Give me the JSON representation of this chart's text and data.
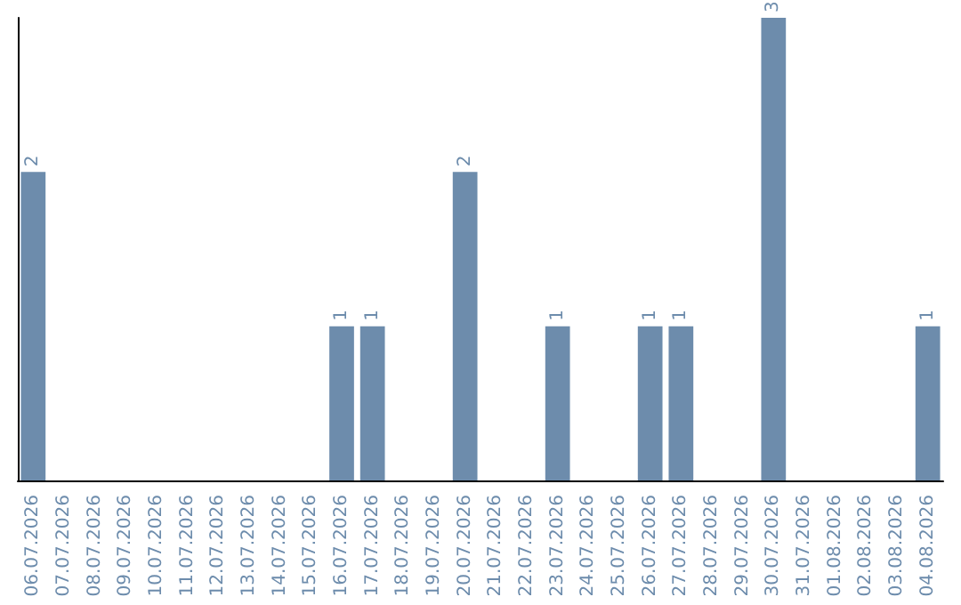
{
  "chart_data": {
    "type": "bar",
    "categories": [
      "06.07.2026",
      "07.07.2026",
      "08.07.2026",
      "09.07.2026",
      "10.07.2026",
      "11.07.2026",
      "12.07.2026",
      "13.07.2026",
      "14.07.2026",
      "15.07.2026",
      "16.07.2026",
      "17.07.2026",
      "18.07.2026",
      "19.07.2026",
      "20.07.2026",
      "21.07.2026",
      "22.07.2026",
      "23.07.2026",
      "24.07.2026",
      "25.07.2026",
      "26.07.2026",
      "27.07.2026",
      "28.07.2026",
      "29.07.2026",
      "30.07.2026",
      "31.07.2026",
      "01.08.2026",
      "02.08.2026",
      "03.08.2026",
      "04.08.2026"
    ],
    "values": [
      2,
      0,
      0,
      0,
      0,
      0,
      0,
      0,
      0,
      0,
      1,
      1,
      0,
      0,
      2,
      0,
      0,
      1,
      0,
      0,
      1,
      1,
      0,
      0,
      3,
      0,
      0,
      0,
      0,
      1
    ],
    "value_labels": [
      "2",
      null,
      null,
      null,
      null,
      null,
      null,
      null,
      null,
      null,
      "1",
      "1",
      null,
      null,
      "2",
      null,
      null,
      "1",
      null,
      null,
      "1",
      "1",
      null,
      null,
      "3",
      null,
      null,
      null,
      null,
      "1"
    ],
    "color": "#6d8cac"
  }
}
